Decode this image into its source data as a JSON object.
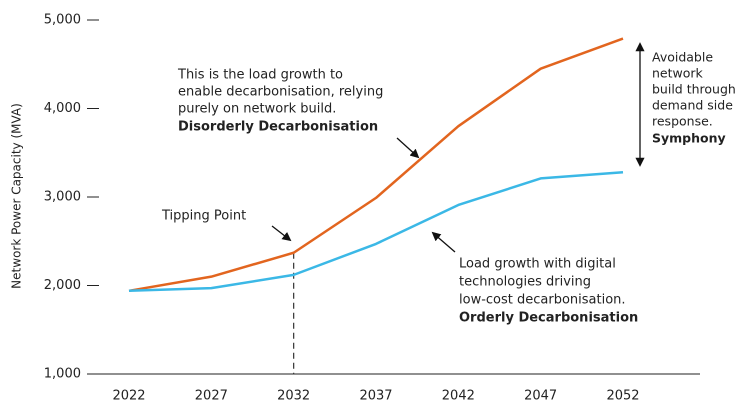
{
  "chart_data": {
    "type": "line",
    "ylabel": "Network Power Capacity (MVA)",
    "x": [
      2022,
      2027,
      2032,
      2037,
      2042,
      2047,
      2052
    ],
    "xlim": [
      2022,
      2052
    ],
    "xticks": [
      2022,
      2027,
      2032,
      2037,
      2042,
      2047,
      2052
    ],
    "ylim": [
      1000,
      5000
    ],
    "yticks": [
      {
        "value": 1000,
        "label": "1,000"
      },
      {
        "value": 2000,
        "label": "2,000"
      },
      {
        "value": 3000,
        "label": "3,000"
      },
      {
        "value": 4000,
        "label": "4,000"
      },
      {
        "value": 5000,
        "label": "5,000"
      }
    ],
    "series": [
      {
        "name": "Disorderly Decarbonisation",
        "color": "#e2651f",
        "values": [
          1940,
          2100,
          2370,
          2990,
          3800,
          4450,
          4790
        ]
      },
      {
        "name": "Orderly Decarbonisation",
        "color": "#3bb8e6",
        "values": [
          1940,
          1970,
          2120,
          2470,
          2910,
          3210,
          3280
        ]
      }
    ],
    "annotations": {
      "disorderly": [
        "This is the load growth to",
        "enable decarbonisation, relying",
        "purely on network build."
      ],
      "orderly": [
        "Load growth with digital",
        "technologies driving",
        "low-cost decarbonisation."
      ],
      "tipping_point": "Tipping Point",
      "avoidable": [
        "Avoidable",
        "network",
        "build through",
        "demand side",
        "response."
      ],
      "symphony": "Symphony"
    }
  }
}
